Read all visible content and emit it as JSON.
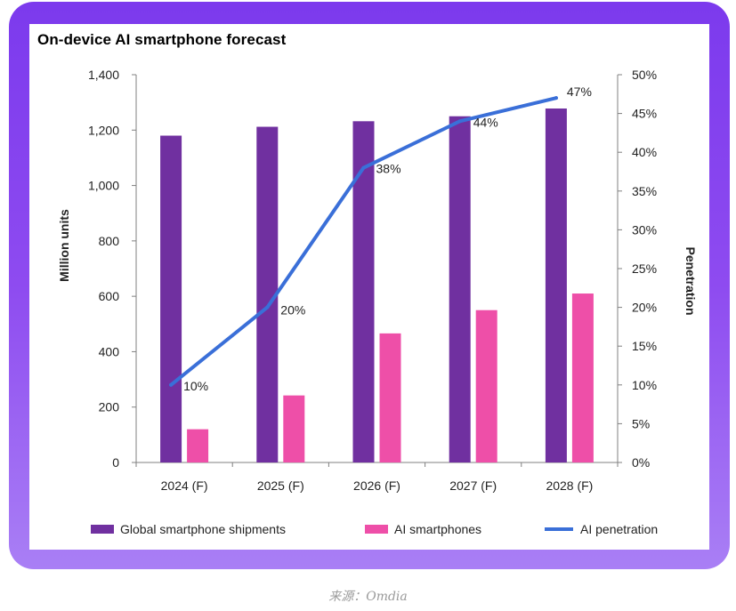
{
  "chart_data": {
    "type": "bar",
    "title": "On-device AI smartphone forecast",
    "categories": [
      "2024 (F)",
      "2025 (F)",
      "2026 (F)",
      "2027 (F)",
      "2028 (F)"
    ],
    "series": [
      {
        "name": "Global smartphone shipments",
        "type": "bar",
        "axis": "left",
        "color": "#7030a0",
        "values": [
          1180,
          1212,
          1232,
          1250,
          1278
        ]
      },
      {
        "name": "AI smartphones",
        "type": "bar",
        "axis": "left",
        "color": "#ee4fa8",
        "values": [
          120,
          242,
          466,
          550,
          610
        ]
      },
      {
        "name": "AI penetration",
        "type": "line",
        "axis": "right",
        "color": "#3a6fd8",
        "values": [
          10,
          20,
          38,
          44,
          47
        ],
        "labels": [
          "10%",
          "20%",
          "38%",
          "44%",
          "47%"
        ]
      }
    ],
    "ylabel": "Million units",
    "ylim": [
      0,
      1400
    ],
    "yticks": [
      "0",
      "200",
      "400",
      "600",
      "800",
      "1,000",
      "1,200",
      "1,400"
    ],
    "y2label": "Penetration",
    "y2lim": [
      0,
      50
    ],
    "y2ticks": [
      "0%",
      "5%",
      "10%",
      "15%",
      "20%",
      "25%",
      "30%",
      "35%",
      "40%",
      "45%",
      "50%"
    ],
    "grid": false,
    "legend": "bottom"
  },
  "source": "来源：Omdia"
}
